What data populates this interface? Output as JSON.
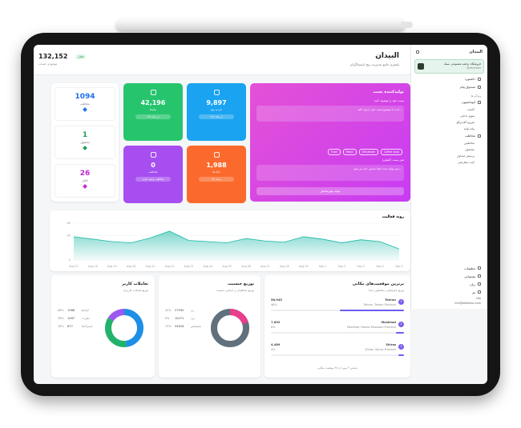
{
  "header": {
    "title": "البیدان",
    "subtitle": "پلتفرم جامع مدیریت پیج اینستاگرام",
    "balance": "132,152",
    "balance_label": "موجودی حساب",
    "status_badge": "فعال"
  },
  "sidebar": {
    "brand": "البیدان",
    "account": "فروشگاه تراشه مصنوعی سبک",
    "account_handle": "@albeidan",
    "items": [
      "داشبورد",
      "صندوق پیام"
    ],
    "section": "ویژگی‌ها",
    "group1": "اتوماسیون",
    "group1_items": [
      "کامنت",
      "منوی داخلی",
      "شروع گفت‌وگو",
      "پیام اولیه"
    ],
    "group2": "مخاطب",
    "group2_items": [
      "مخاطبین",
      "محصول",
      "پرسش متداول",
      "کیت سفارشی"
    ],
    "footer": [
      "تنظیمات",
      "پشتیبانی",
      "زبان",
      "تم"
    ],
    "user": "info",
    "email": "info@albeidan.com"
  },
  "stats": [
    {
      "value": "1094",
      "label": "مخاطب",
      "color": "#1f6feb"
    },
    {
      "value": "1",
      "label": "محصول",
      "color": "#1f9d55"
    },
    {
      "value": "26",
      "label": "کانال",
      "color": "#c026d3"
    }
  ],
  "tiles": [
    {
      "value": "42,196",
      "label": "پیام‌ها",
      "badge": "۱۶٪ در ماه",
      "color": "#27c46e"
    },
    {
      "value": "9,897",
      "label": "بازدید پیج",
      "badge": "۱۲٪ در ماه",
      "color": "#1aa3f0"
    },
    {
      "value": "0",
      "label": "مخاطب",
      "badge": "مخاطب وجود ندارد",
      "color": "#a64ef0"
    },
    {
      "value": "1,988",
      "label": "لایک‌ها",
      "badge": "۸٪ رشد",
      "color": "#fb6a2c"
    }
  ],
  "post": {
    "title": "تولیدکننده پست",
    "prompt_label": "پست خود را توصیف کنید",
    "prompt_text": "ایده یا موضوع پست خود را وارد کنید...",
    "tags": [
      "Food",
      "Retail",
      "Wholesale",
      "Coffee shop"
    ],
    "caption_label": "متن پست (کپشن)",
    "caption_text": "متن تولید شده اینجا نمایش داده می‌شود...",
    "button": "تولید پیش‌نمایش"
  },
  "activity": {
    "title": "روند فعالیت"
  },
  "chart_data": {
    "type": "area",
    "title": "روند فعالیت",
    "x": [
      "Aug 17",
      "Aug 18",
      "Aug 19",
      "Aug 20",
      "Aug 21",
      "Aug 22",
      "Aug 23",
      "Aug 24",
      "Aug 25",
      "Aug 26",
      "Aug 27",
      "Aug 28",
      "Aug 29",
      "Sep 1",
      "Sep 2",
      "Sep 3",
      "Sep 4",
      "Sep 5"
    ],
    "values": [
      38,
      34,
      30,
      28,
      36,
      47,
      32,
      30,
      28,
      35,
      31,
      29,
      38,
      34,
      28,
      33,
      30,
      18
    ],
    "ylim": [
      0,
      60
    ],
    "yticks": [
      "60",
      "40",
      "0"
    ],
    "color": "#17b8a6"
  },
  "cities": {
    "title": "برترین موقعیت‌های مکانی",
    "subtitle": "توزیع جغرافیایی مخاطبین شما",
    "items": [
      {
        "name": "Tehran",
        "full": "Tehran, Tehran Province",
        "value": "56,945",
        "pct": "48%",
        "rank": "1",
        "fill": 0.48
      },
      {
        "name": "Mashhad",
        "full": "Mashhad, Razavi Khorasan Province",
        "value": "7,602",
        "pct": "6%",
        "rank": "2",
        "fill": 0.06
      },
      {
        "name": "Shiraz",
        "full": "Shiraz, Shiraz Province",
        "value": "4,489",
        "pct": "4%",
        "rank": "3",
        "fill": 0.04
      }
    ],
    "footer": "نمایش ۳ مورد از ۴۸ موقعیت مکانی"
  },
  "gender": {
    "title": "توزیع جنسیت",
    "subtitle": "توزیع مخاطبان بر اساس جنسیت",
    "items": [
      {
        "label": "زن",
        "value": "27930",
        "pct": "20%"
      },
      {
        "label": "مرد",
        "value": "10271",
        "pct": "8%"
      },
      {
        "label": "نامشخص",
        "value": "94618",
        "pct": "72%"
      }
    ]
  },
  "engagement": {
    "title": "تعاملات کاربر",
    "subtitle": "توزیع تعاملات کاربران",
    "items": [
      {
        "label": "لایک‌ها",
        "value": "1988",
        "pct": "48%"
      },
      {
        "label": "نظرات",
        "value": "1487",
        "pct": "36%"
      },
      {
        "label": "اشتراک‌ها",
        "value": "677",
        "pct": "16%"
      }
    ]
  }
}
